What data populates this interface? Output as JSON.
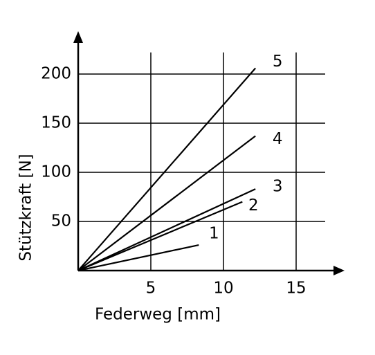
{
  "chart_data": {
    "type": "line",
    "x_label": "Federweg [mm]",
    "y_label": "Stützkraft [N]",
    "xlim": [
      0,
      17
    ],
    "ylim": [
      0,
      222
    ],
    "xticks": [
      5,
      10,
      15
    ],
    "yticks": [
      50,
      100,
      150,
      200
    ],
    "grid": true,
    "series": [
      {
        "name": "1",
        "color": "#000000",
        "x": [
          0,
          8.3
        ],
        "values": [
          0,
          26
        ]
      },
      {
        "name": "2",
        "color": "#000000",
        "x": [
          0,
          11.3
        ],
        "values": [
          0,
          70
        ]
      },
      {
        "name": "3",
        "color": "#000000",
        "x": [
          0,
          12.2
        ],
        "values": [
          0,
          83
        ]
      },
      {
        "name": "4",
        "color": "#000000",
        "x": [
          0,
          12.2
        ],
        "values": [
          0,
          137
        ]
      },
      {
        "name": "5",
        "color": "#000000",
        "x": [
          0,
          12.2
        ],
        "values": [
          0,
          206
        ]
      }
    ]
  }
}
